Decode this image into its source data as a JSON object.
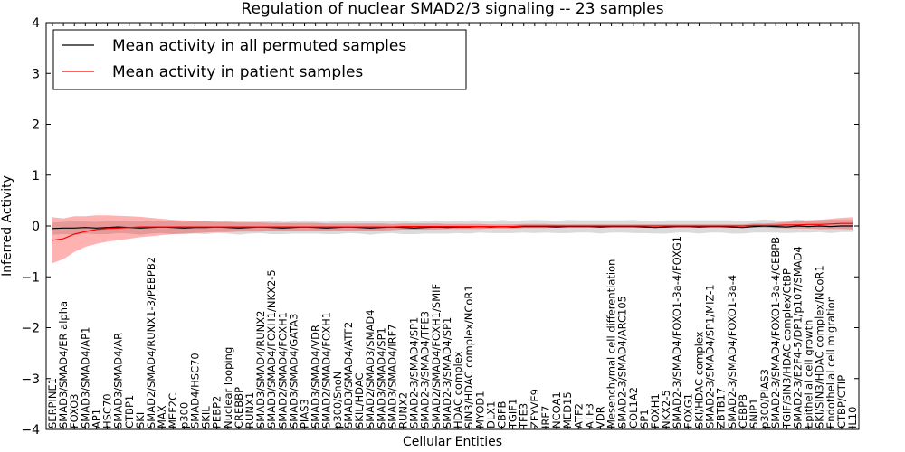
{
  "chart_data": {
    "type": "line",
    "title": "Regulation of nuclear SMAD2/3 signaling -- 23 samples",
    "xlabel": "Cellular Entities",
    "ylabel": "Inferred Activity",
    "ylim": [
      -4,
      4
    ],
    "yticks": [
      "4",
      "3",
      "2",
      "1",
      "0",
      "−1",
      "−2",
      "−3",
      "−4"
    ],
    "ytick_values": [
      4,
      3,
      2,
      1,
      0,
      -1,
      -2,
      -3,
      -4
    ],
    "grid": false,
    "legend": {
      "placement": "top-left",
      "entries": [
        {
          "label": "Mean activity in all permuted samples",
          "color": "#000000"
        },
        {
          "label": "Mean activity in patient samples",
          "color": "#ff0000"
        }
      ]
    },
    "entities": [
      "SERPINE1",
      "SMAD3/SMAD4/ER alpha",
      "FOXO3",
      "SMAD3/SMAD4/AP1",
      "AP1",
      "HSC70",
      "SMAD3/SMAD4/AR",
      "CTBP1",
      "SKI",
      "SMAD2/SMAD4/RUNX1-3/PEBPB2",
      "MAX",
      "MEF2C",
      "p300",
      "SMAD4/HSC70",
      "SKIL",
      "PEBP2",
      "Nuclear looping",
      "CREBBP",
      "RUNX1",
      "SMAD3/SMAD4/RUNX2",
      "SMAD3/SMAD4/FOXH1/NKX2-5",
      "SMAD2/SMAD4/FOXH1",
      "SMAD3/SMAD4/GATA3",
      "PIAS3",
      "SMAD3/SMAD4/VDR",
      "SMAD2/SMAD4/FOXH1",
      "p300/SnoN",
      "SMAD3/SMAD4/ATF2",
      "SKIL/HDAC",
      "SMAD2/SMAD3/SMAD4",
      "SMAD3/SMAD4/SP1",
      "SMAD3/SMAD4/IRF7",
      "RUNX2",
      "SMAD2-3/SMAD4/SP1",
      "SMAD2-3/SMAD4/TFE3",
      "SMAD2/SMAD4/FOXH1/SMIF",
      "SMAD2-3/SMAD4/SP1",
      "HDAC complex",
      "SIN3/HDAC complex/NCoR1",
      "MYOD1",
      "DLX1",
      "CBFB",
      "TGIF1",
      "TFE3",
      "ZFYVE9",
      "IRF7",
      "NCOA1",
      "MED15",
      "ATF2",
      "ATF3",
      "VDR",
      "Mesenchymal cell differentiation",
      "SMAD2-3/SMAD4/ARC105",
      "COL1A2",
      "SP1",
      "FOXH1",
      "NKX2-5",
      "SMAD2-3/SMAD4/FOXO1-3a-4/FOXG1",
      "FOXG1",
      "SKI/HDAC complex",
      "SMAD2-3/SMAD4/SP1/MIZ-1",
      "ZBTB17",
      "SMAD2-3/SMAD4/FOXO1-3a-4",
      "CEBPB",
      "SNIP1",
      "p300/PIAS3",
      "SMAD2-3/SMAD4/FOXO1-3a-4/CEBPB",
      "TGIF/SIN3/HDAC complex/CtBP",
      "SMAD2-3/E2F4-5/DP1/p107/SMAD4",
      "Epithelial cell growth",
      "SKI/SIN3/HDAC complex/NCoR1",
      "Endothelial cell migration",
      "CTBP/CTIP",
      "IL10"
    ],
    "series": [
      {
        "name": "Mean activity in patient samples",
        "color": "#ff0000",
        "values": [
          -0.28,
          -0.25,
          -0.16,
          -0.11,
          -0.07,
          -0.05,
          -0.04,
          -0.03,
          -0.02,
          -0.02,
          -0.02,
          -0.02,
          -0.02,
          -0.02,
          -0.02,
          -0.02,
          -0.02,
          -0.02,
          -0.02,
          -0.02,
          -0.02,
          -0.02,
          -0.02,
          -0.02,
          -0.02,
          -0.02,
          -0.02,
          -0.02,
          -0.02,
          -0.02,
          -0.02,
          -0.02,
          -0.01,
          -0.01,
          -0.01,
          -0.01,
          -0.01,
          -0.01,
          -0.01,
          -0.01,
          -0.01,
          -0.01,
          -0.01,
          0.0,
          0.0,
          0.0,
          0.0,
          0.0,
          0.0,
          0.0,
          0.0,
          0.0,
          0.0,
          0.0,
          0.0,
          0.0,
          0.0,
          0.0,
          0.0,
          0.0,
          0.0,
          0.0,
          0.0,
          0.0,
          0.01,
          0.01,
          0.01,
          0.02,
          0.02,
          0.03,
          0.03,
          0.04,
          0.05,
          0.05
        ],
        "band": [
          0.45,
          0.4,
          0.35,
          0.3,
          0.28,
          0.26,
          0.24,
          0.22,
          0.2,
          0.18,
          0.16,
          0.14,
          0.13,
          0.12,
          0.11,
          0.1,
          0.1,
          0.09,
          0.09,
          0.09,
          0.08,
          0.08,
          0.08,
          0.08,
          0.08,
          0.07,
          0.07,
          0.07,
          0.07,
          0.07,
          0.07,
          0.06,
          0.06,
          0.06,
          0.06,
          0.06,
          0.05,
          0.05,
          0.05,
          0.05,
          0.04,
          0.04,
          0.04,
          0.04,
          0.04,
          0.04,
          0.03,
          0.03,
          0.03,
          0.03,
          0.03,
          0.03,
          0.03,
          0.03,
          0.03,
          0.03,
          0.03,
          0.03,
          0.03,
          0.03,
          0.03,
          0.03,
          0.03,
          0.03,
          0.04,
          0.04,
          0.05,
          0.06,
          0.07,
          0.08,
          0.09,
          0.1,
          0.11,
          0.12
        ]
      },
      {
        "name": "Mean activity in all permuted samples",
        "color": "#000000",
        "values": [
          -0.05,
          -0.04,
          -0.04,
          -0.03,
          -0.04,
          -0.03,
          -0.02,
          -0.03,
          -0.04,
          -0.03,
          -0.02,
          -0.03,
          -0.04,
          -0.03,
          -0.03,
          -0.02,
          -0.03,
          -0.04,
          -0.03,
          -0.02,
          -0.03,
          -0.04,
          -0.03,
          -0.02,
          -0.03,
          -0.04,
          -0.03,
          -0.02,
          -0.03,
          -0.04,
          -0.03,
          -0.02,
          -0.03,
          -0.04,
          -0.03,
          -0.02,
          -0.03,
          -0.02,
          -0.02,
          -0.01,
          -0.02,
          -0.01,
          -0.02,
          -0.01,
          -0.01,
          -0.01,
          -0.02,
          -0.01,
          -0.01,
          -0.01,
          -0.02,
          -0.01,
          -0.01,
          -0.01,
          -0.02,
          -0.03,
          -0.02,
          -0.01,
          -0.01,
          -0.02,
          -0.01,
          -0.01,
          -0.02,
          -0.03,
          -0.01,
          0.0,
          -0.01,
          -0.02,
          0.0,
          -0.01,
          0.0,
          -0.01,
          0.0,
          0.0
        ],
        "band": [
          0.12,
          0.12,
          0.13,
          0.12,
          0.12,
          0.13,
          0.12,
          0.12,
          0.13,
          0.12,
          0.12,
          0.13,
          0.12,
          0.12,
          0.13,
          0.12,
          0.12,
          0.13,
          0.12,
          0.12,
          0.13,
          0.12,
          0.12,
          0.13,
          0.12,
          0.12,
          0.13,
          0.12,
          0.12,
          0.13,
          0.12,
          0.12,
          0.13,
          0.12,
          0.12,
          0.13,
          0.12,
          0.12,
          0.13,
          0.12,
          0.12,
          0.13,
          0.12,
          0.12,
          0.13,
          0.12,
          0.12,
          0.13,
          0.12,
          0.12,
          0.13,
          0.12,
          0.12,
          0.13,
          0.12,
          0.12,
          0.13,
          0.12,
          0.12,
          0.13,
          0.12,
          0.12,
          0.13,
          0.12,
          0.12,
          0.13,
          0.12,
          0.12,
          0.13,
          0.12,
          0.12,
          0.13,
          0.12,
          0.12
        ]
      }
    ]
  }
}
